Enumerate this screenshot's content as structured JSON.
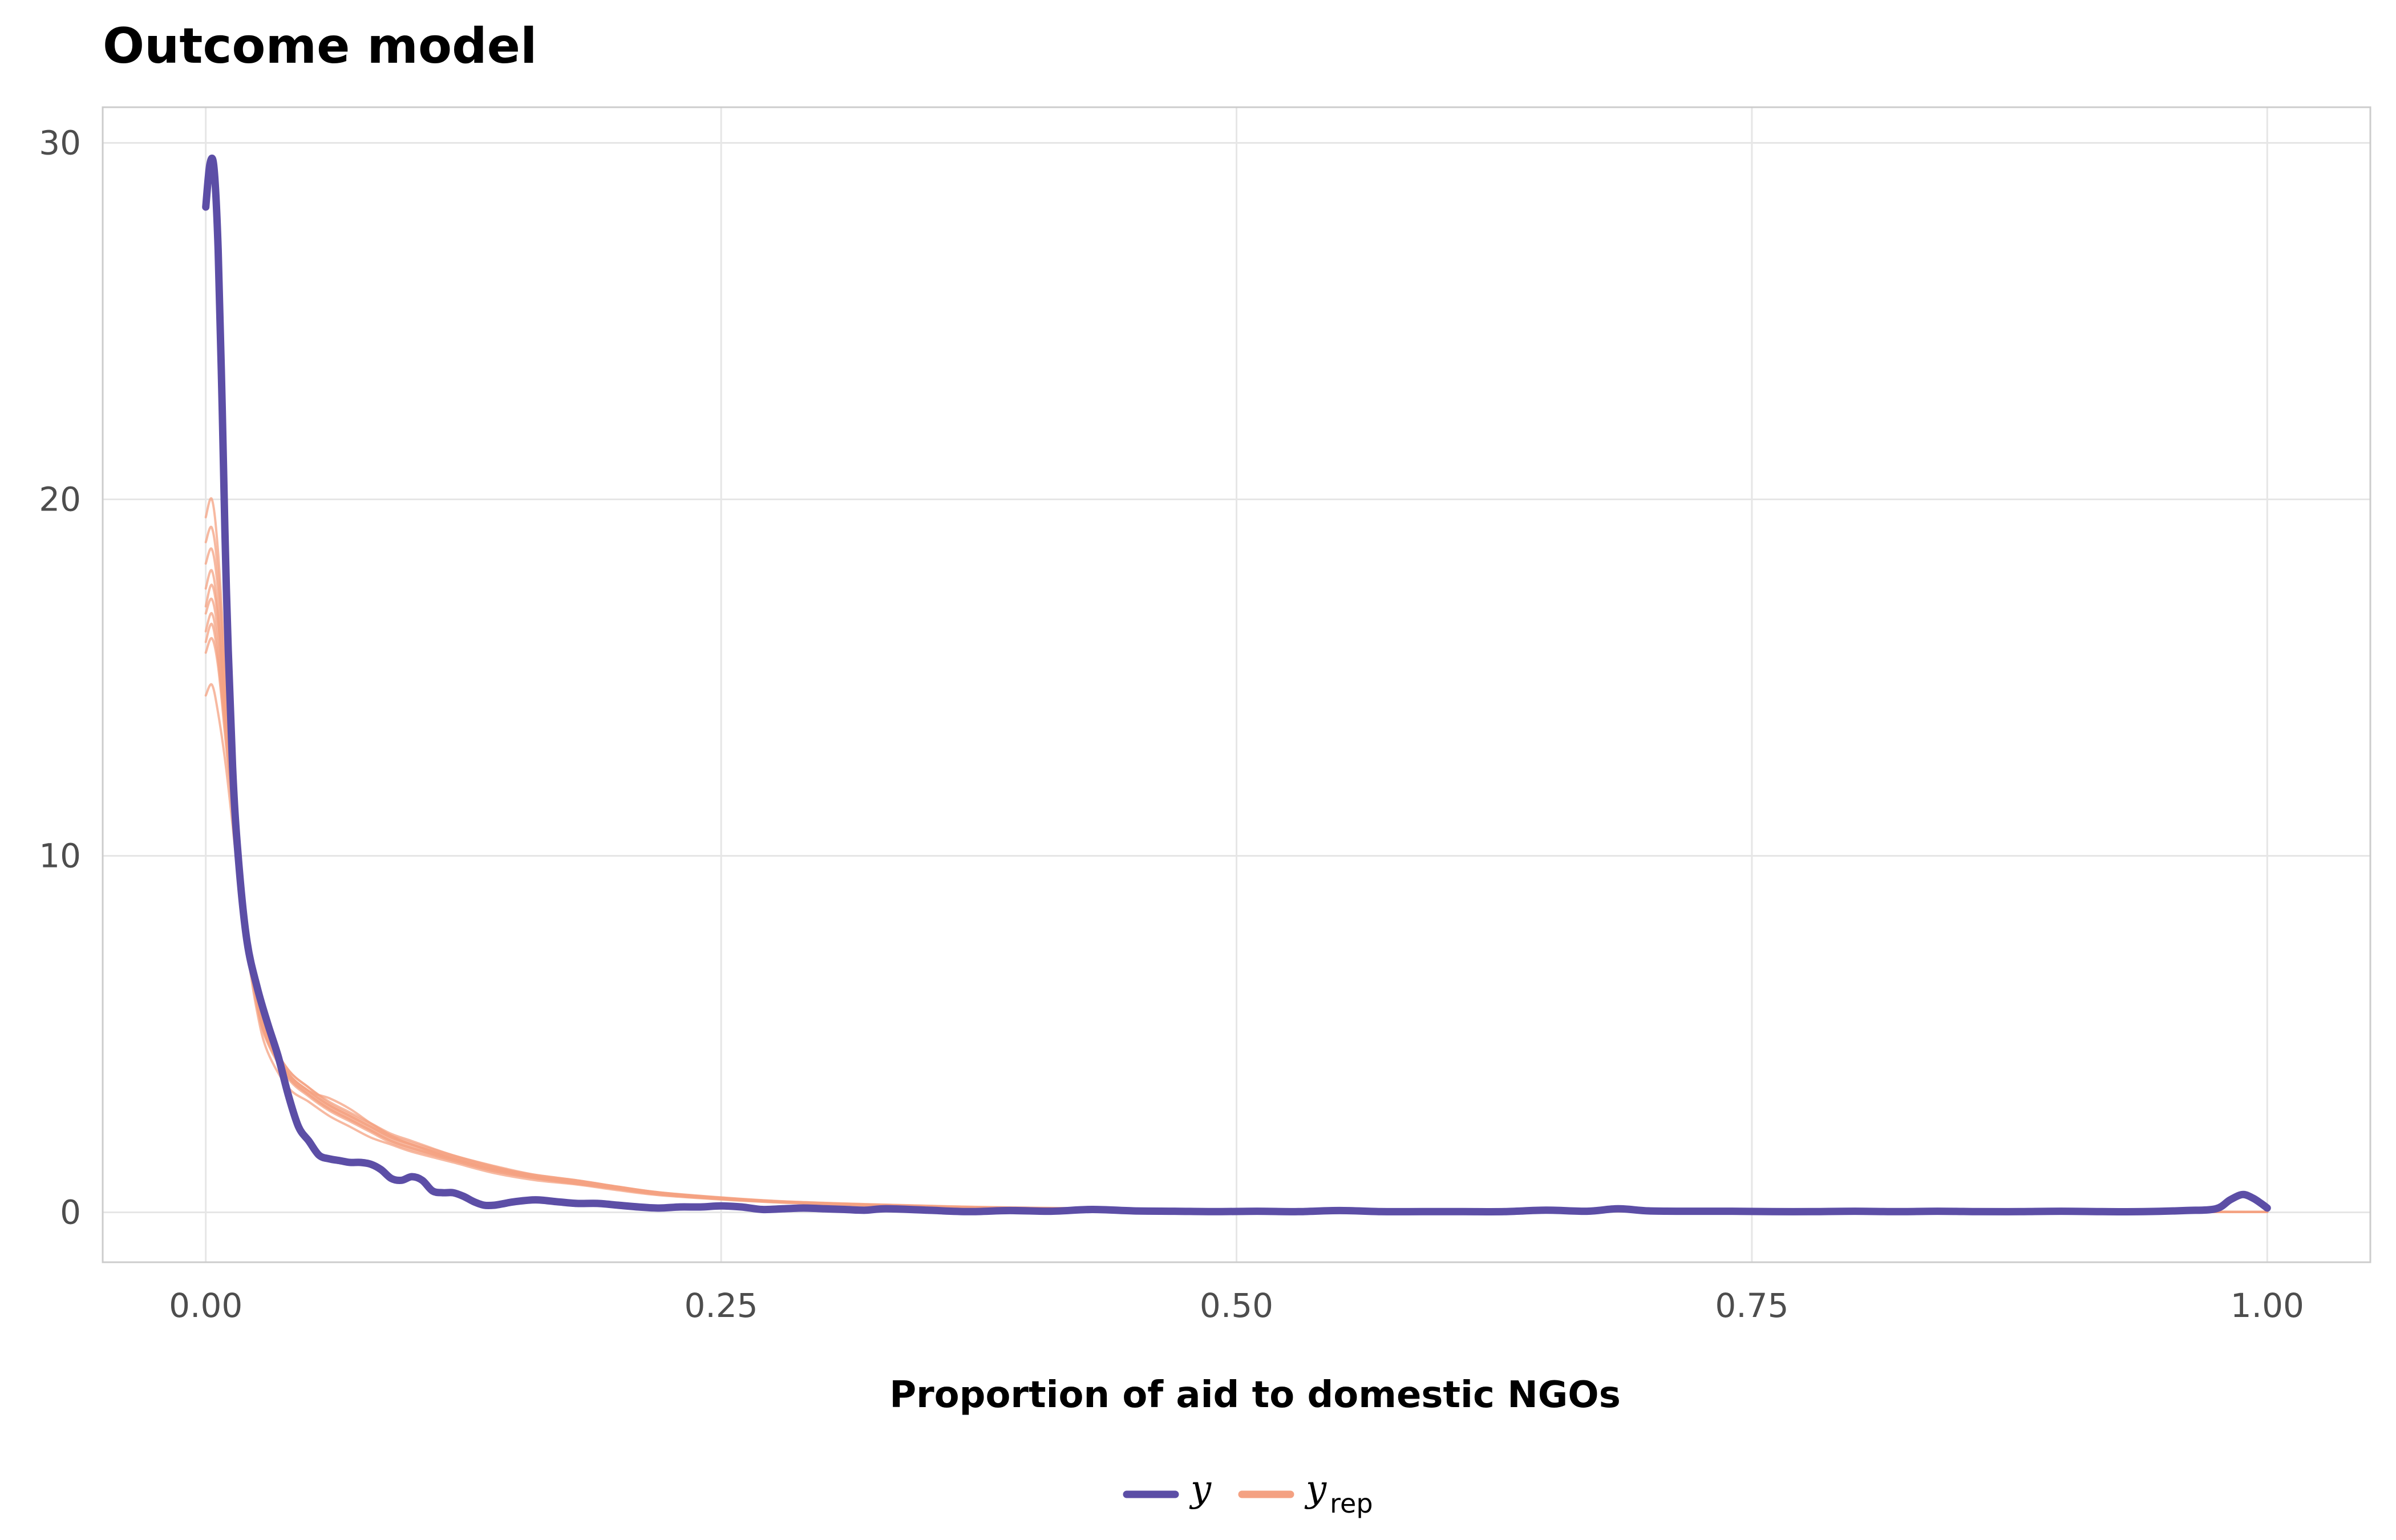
{
  "chart_data": {
    "type": "line",
    "title": "Outcome model",
    "xlabel": "Proportion of aid to domestic NGOs",
    "ylabel": "",
    "xlim": [
      -0.05,
      1.05
    ],
    "ylim": [
      -1.4,
      31.0
    ],
    "grid": true,
    "legend_position": "bottom",
    "x_ticks": [
      {
        "value": 0.0,
        "label": "0.00"
      },
      {
        "value": 0.25,
        "label": "0.25"
      },
      {
        "value": 0.5,
        "label": "0.50"
      },
      {
        "value": 0.75,
        "label": "0.75"
      },
      {
        "value": 1.0,
        "label": "1.00"
      }
    ],
    "y_ticks": [
      {
        "value": 0,
        "label": "0"
      },
      {
        "value": 10,
        "label": "10"
      },
      {
        "value": 20,
        "label": "20"
      },
      {
        "value": 30,
        "label": "30"
      }
    ],
    "legend": [
      {
        "label": "y",
        "subscript": "",
        "color": "#5c4ea6"
      },
      {
        "label": "y",
        "subscript": "rep",
        "color": "#f4a182"
      }
    ],
    "series": [
      {
        "role": "observed",
        "color": "#5c4ea6",
        "x": [
          0.0,
          0.002,
          0.004,
          0.006,
          0.008,
          0.01,
          0.013,
          0.016,
          0.02,
          0.025,
          0.03,
          0.035,
          0.04,
          0.045,
          0.05,
          0.055,
          0.06,
          0.065,
          0.07,
          0.075,
          0.08,
          0.085,
          0.09,
          0.095,
          0.1,
          0.105,
          0.11,
          0.115,
          0.12,
          0.125,
          0.13,
          0.135,
          0.14,
          0.145,
          0.15,
          0.16,
          0.17,
          0.18,
          0.19,
          0.2,
          0.21,
          0.22,
          0.23,
          0.24,
          0.25,
          0.26,
          0.27,
          0.28,
          0.29,
          0.3,
          0.31,
          0.32,
          0.33,
          0.35,
          0.37,
          0.39,
          0.41,
          0.43,
          0.45,
          0.47,
          0.49,
          0.51,
          0.53,
          0.55,
          0.57,
          0.59,
          0.61,
          0.63,
          0.65,
          0.67,
          0.685,
          0.7,
          0.72,
          0.74,
          0.76,
          0.78,
          0.8,
          0.82,
          0.84,
          0.86,
          0.88,
          0.9,
          0.92,
          0.94,
          0.96,
          0.975,
          0.982,
          0.988,
          0.993,
          0.997,
          1.0
        ],
        "y": [
          28.2,
          29.4,
          29.3,
          27.0,
          22.5,
          17.5,
          12.5,
          9.8,
          7.6,
          6.3,
          5.3,
          4.4,
          3.3,
          2.4,
          2.0,
          1.6,
          1.5,
          1.45,
          1.4,
          1.4,
          1.35,
          1.2,
          0.95,
          0.9,
          1.0,
          0.9,
          0.6,
          0.55,
          0.55,
          0.45,
          0.3,
          0.2,
          0.2,
          0.25,
          0.3,
          0.35,
          0.3,
          0.25,
          0.25,
          0.2,
          0.15,
          0.12,
          0.15,
          0.15,
          0.18,
          0.15,
          0.08,
          0.1,
          0.12,
          0.1,
          0.08,
          0.06,
          0.1,
          0.06,
          0.02,
          0.05,
          0.03,
          0.08,
          0.04,
          0.03,
          0.02,
          0.03,
          0.02,
          0.05,
          0.02,
          0.02,
          0.02,
          0.02,
          0.06,
          0.03,
          0.1,
          0.04,
          0.03,
          0.03,
          0.02,
          0.02,
          0.03,
          0.02,
          0.03,
          0.02,
          0.02,
          0.03,
          0.02,
          0.02,
          0.05,
          0.1,
          0.35,
          0.5,
          0.4,
          0.25,
          0.12
        ]
      },
      {
        "role": "replicated",
        "color": "#f4a182",
        "x": [
          0.0,
          0.003,
          0.006,
          0.01,
          0.015,
          0.02,
          0.025,
          0.03,
          0.04,
          0.05,
          0.06,
          0.07,
          0.08,
          0.09,
          0.1,
          0.12,
          0.14,
          0.16,
          0.18,
          0.2,
          0.22,
          0.25,
          0.28,
          0.32,
          0.36,
          0.4,
          0.45,
          0.5,
          0.6,
          0.7,
          0.8,
          0.9,
          1.0
        ],
        "y_replicates": [
          [
            16.0,
            16.5,
            15.5,
            13.2,
            10.2,
            7.6,
            5.8,
            4.8,
            3.8,
            3.3,
            2.9,
            2.6,
            2.3,
            2.0,
            1.8,
            1.45,
            1.15,
            0.95,
            0.8,
            0.65,
            0.5,
            0.38,
            0.28,
            0.2,
            0.15,
            0.12,
            0.08,
            0.06,
            0.04,
            0.03,
            0.02,
            0.02,
            0.01
          ],
          [
            17.5,
            18.0,
            16.8,
            13.8,
            10.5,
            7.8,
            6.0,
            4.9,
            3.9,
            3.4,
            3.0,
            2.7,
            2.4,
            2.1,
            1.9,
            1.5,
            1.2,
            1.0,
            0.85,
            0.7,
            0.55,
            0.4,
            0.3,
            0.22,
            0.16,
            0.12,
            0.09,
            0.07,
            0.04,
            0.03,
            0.02,
            0.02,
            0.01
          ],
          [
            19.5,
            20.0,
            18.5,
            14.8,
            11.0,
            8.0,
            6.1,
            5.0,
            4.0,
            3.5,
            3.1,
            2.8,
            2.5,
            2.2,
            2.0,
            1.6,
            1.3,
            1.05,
            0.9,
            0.72,
            0.56,
            0.42,
            0.31,
            0.23,
            0.17,
            0.13,
            0.1,
            0.07,
            0.05,
            0.03,
            0.02,
            0.02,
            0.01
          ],
          [
            14.5,
            14.8,
            14.0,
            12.4,
            9.8,
            7.4,
            5.6,
            4.5,
            3.5,
            3.1,
            2.7,
            2.4,
            2.1,
            1.9,
            1.7,
            1.4,
            1.1,
            0.9,
            0.78,
            0.62,
            0.48,
            0.36,
            0.27,
            0.19,
            0.14,
            0.11,
            0.08,
            0.06,
            0.04,
            0.03,
            0.02,
            0.02,
            0.01
          ],
          [
            18.2,
            18.6,
            17.4,
            14.2,
            10.7,
            7.9,
            6.0,
            5.0,
            3.9,
            3.4,
            3.0,
            2.7,
            2.4,
            2.1,
            1.9,
            1.55,
            1.25,
            1.0,
            0.86,
            0.7,
            0.54,
            0.4,
            0.3,
            0.22,
            0.16,
            0.12,
            0.09,
            0.07,
            0.04,
            0.03,
            0.02,
            0.02,
            0.01
          ],
          [
            16.8,
            17.2,
            16.2,
            13.5,
            10.3,
            7.7,
            5.9,
            4.85,
            3.85,
            3.35,
            2.95,
            2.65,
            2.35,
            2.05,
            1.85,
            1.5,
            1.2,
            0.98,
            0.83,
            0.68,
            0.52,
            0.39,
            0.29,
            0.21,
            0.15,
            0.12,
            0.09,
            0.06,
            0.04,
            0.03,
            0.02,
            0.02,
            0.01
          ],
          [
            17.0,
            17.6,
            16.6,
            13.7,
            10.4,
            7.75,
            5.95,
            4.9,
            3.9,
            3.4,
            3.2,
            2.9,
            2.5,
            2.15,
            1.9,
            1.55,
            1.25,
            1.05,
            0.9,
            0.72,
            0.56,
            0.4,
            0.3,
            0.22,
            0.16,
            0.12,
            0.09,
            0.07,
            0.04,
            0.03,
            0.02,
            0.02,
            0.01
          ],
          [
            15.7,
            16.1,
            15.3,
            13.0,
            10.1,
            7.55,
            5.75,
            4.75,
            3.75,
            3.25,
            2.85,
            2.55,
            2.25,
            1.95,
            1.75,
            1.45,
            1.15,
            0.95,
            0.8,
            0.66,
            0.5,
            0.37,
            0.28,
            0.2,
            0.15,
            0.12,
            0.08,
            0.06,
            0.04,
            0.03,
            0.02,
            0.02,
            0.01
          ],
          [
            18.8,
            19.2,
            17.9,
            14.5,
            10.8,
            7.95,
            6.05,
            5.0,
            4.0,
            3.5,
            3.05,
            2.75,
            2.45,
            2.15,
            1.95,
            1.6,
            1.28,
            1.02,
            0.88,
            0.71,
            0.55,
            0.41,
            0.3,
            0.22,
            0.16,
            0.12,
            0.09,
            0.07,
            0.04,
            0.03,
            0.02,
            0.02,
            0.01
          ],
          [
            16.3,
            16.8,
            15.8,
            13.3,
            10.25,
            7.65,
            5.85,
            4.8,
            3.8,
            3.3,
            2.9,
            2.6,
            2.3,
            2.0,
            1.8,
            1.5,
            1.2,
            0.97,
            0.82,
            0.67,
            0.51,
            0.38,
            0.28,
            0.2,
            0.15,
            0.12,
            0.08,
            0.06,
            0.04,
            0.03,
            0.02,
            0.02,
            0.01
          ]
        ]
      }
    ]
  }
}
